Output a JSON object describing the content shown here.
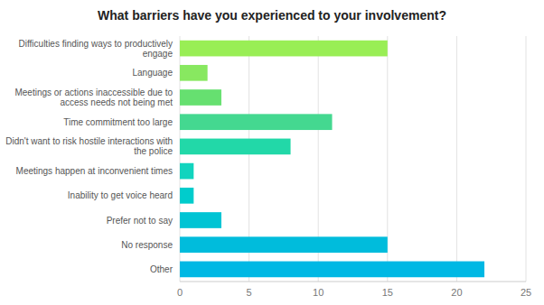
{
  "chart_data": {
    "type": "bar",
    "orientation": "horizontal",
    "title": "What barriers have you experienced to your involvement?",
    "categories": [
      "Difficulties finding ways to productively engage",
      "Language",
      "Meetings or actions inaccessible due to access needs not being met",
      "Time commitment too large",
      "Didn't want to risk hostile interactions with the police",
      "Meetings happen at inconvenient times",
      "Inability to get voice heard",
      "Prefer not to say",
      "No response",
      "Other"
    ],
    "values": [
      15,
      2,
      3,
      11,
      8,
      1,
      1,
      3,
      15,
      22
    ],
    "colors": [
      "#99EE55",
      "#88E860",
      "#66E070",
      "#44D890",
      "#22D8A8",
      "#11D4BE",
      "#00CCCC",
      "#00C4D4",
      "#00BCDC",
      "#00B8E4"
    ],
    "xlim": [
      0,
      25
    ],
    "xticks": [
      0,
      5,
      10,
      15,
      20,
      25
    ],
    "grid": true
  }
}
